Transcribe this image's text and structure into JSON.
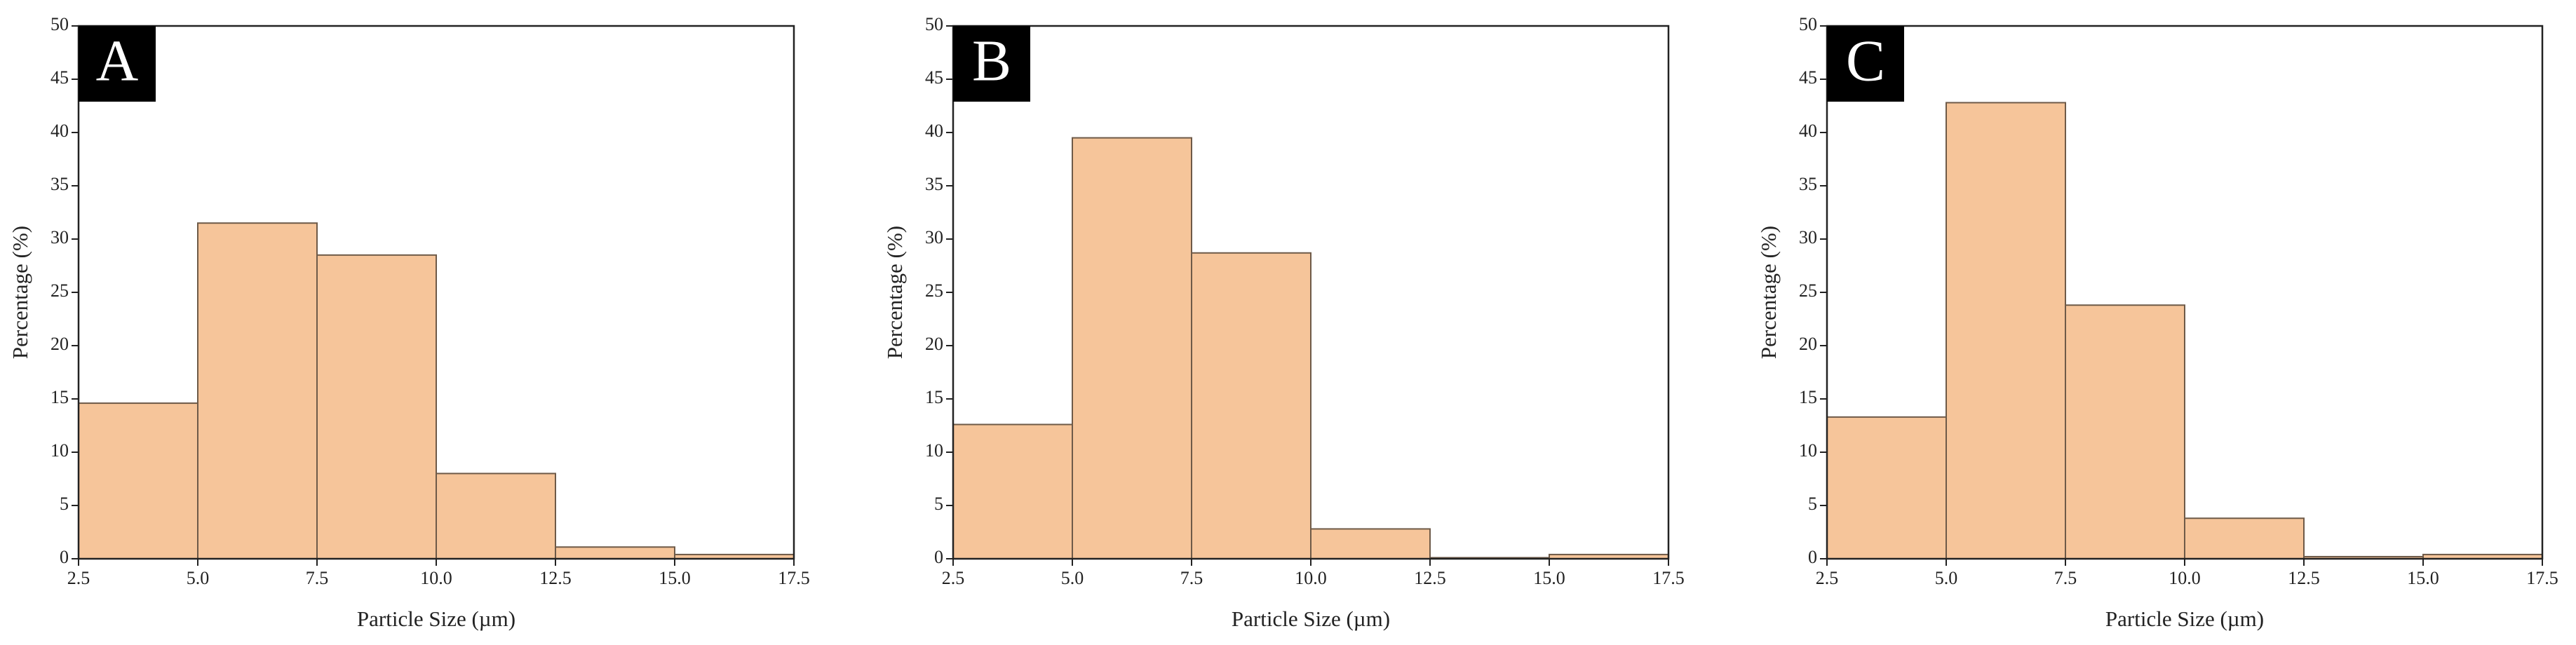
{
  "chart_data": [
    {
      "type": "histogram",
      "label": "A",
      "xlabel": "Particle Size (µm)",
      "ylabel": "Percentage (%)",
      "bins": [
        2.5,
        5,
        7.5,
        10,
        12.5,
        15,
        17.5
      ],
      "values": [
        14.6,
        31.5,
        28.5,
        8.0,
        1.1,
        0.4
      ],
      "color": "#f6c59a",
      "xlim": [
        2.5,
        17.5
      ],
      "ylim": [
        0,
        50
      ],
      "xticks": [
        2.5,
        {
          "value": 5,
          "label": "5.0"
        },
        7.5,
        {
          "value": 10,
          "label": "10.0"
        },
        12.5,
        {
          "value": 15,
          "label": "15.0"
        },
        17.5
      ],
      "yticks": [
        0,
        5,
        10,
        15,
        20,
        25,
        30,
        35,
        40,
        45,
        50
      ]
    },
    {
      "type": "histogram",
      "label": "B",
      "xlabel": "Particle Size (µm)",
      "ylabel": "Percentage (%)",
      "bins": [
        2.5,
        5,
        7.5,
        10,
        12.5,
        15,
        17.5
      ],
      "values": [
        12.6,
        39.5,
        28.7,
        2.8,
        0.1,
        0.4
      ],
      "color": "#f6c59a",
      "xlim": [
        2.5,
        17.5
      ],
      "ylim": [
        0,
        50
      ],
      "xticks": [
        2.5,
        {
          "value": 5,
          "label": "5.0"
        },
        7.5,
        {
          "value": 10,
          "label": "10.0"
        },
        12.5,
        {
          "value": 15,
          "label": "15.0"
        },
        17.5
      ],
      "yticks": [
        0,
        5,
        10,
        15,
        20,
        25,
        30,
        35,
        40,
        45,
        50
      ]
    },
    {
      "type": "histogram",
      "label": "C",
      "xlabel": "Particle Size (µm)",
      "ylabel": "Percentage (%)",
      "bins": [
        2.5,
        5,
        7.5,
        10,
        12.5,
        15,
        17.5
      ],
      "values": [
        13.3,
        42.8,
        23.8,
        3.8,
        0.2,
        0.4
      ],
      "color": "#f6c59a",
      "xlim": [
        2.5,
        17.5
      ],
      "ylim": [
        0,
        50
      ],
      "xticks": [
        2.5,
        {
          "value": 5,
          "label": "5.0"
        },
        7.5,
        {
          "value": 10,
          "label": "10.0"
        },
        12.5,
        {
          "value": 15,
          "label": "15.0"
        },
        17.5
      ],
      "yticks": [
        0,
        5,
        10,
        15,
        20,
        25,
        30,
        35,
        40,
        45,
        50
      ]
    }
  ]
}
